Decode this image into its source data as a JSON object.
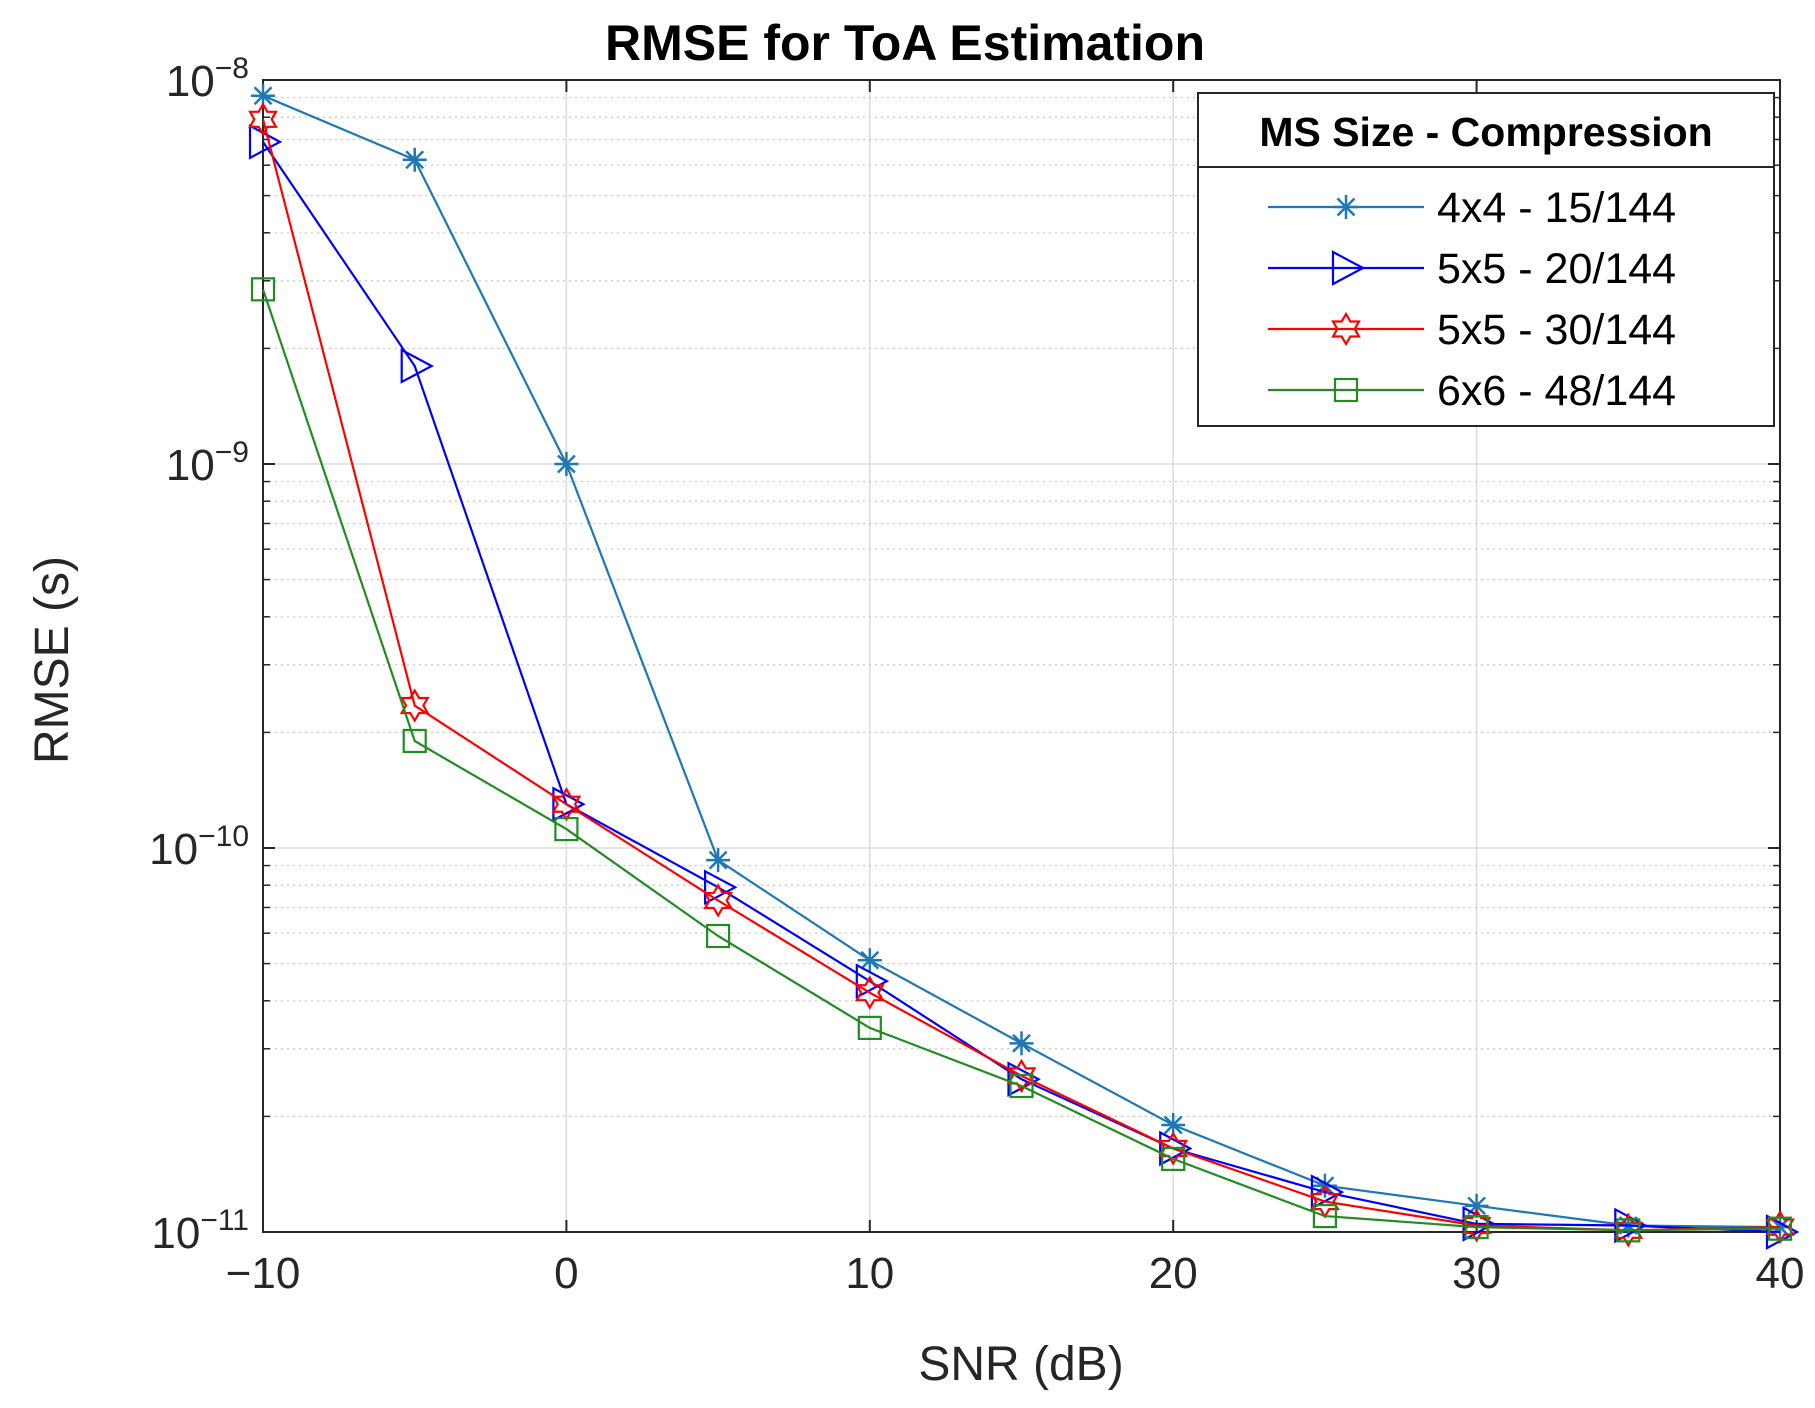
{
  "chart_data": {
    "type": "line",
    "title": "RMSE for ToA Estimation",
    "xlabel": "SNR (dB)",
    "ylabel": "RMSE (s)",
    "x_scale": "linear",
    "y_scale": "log",
    "xlim": [
      -10,
      40
    ],
    "ylim": [
      1e-11,
      1e-08
    ],
    "x": [
      -10,
      -5,
      0,
      5,
      10,
      15,
      20,
      25,
      30,
      35,
      40
    ],
    "x_ticks": [
      -10,
      0,
      10,
      20,
      30,
      40
    ],
    "x_tick_labels": [
      "−10",
      "0",
      "10",
      "20",
      "30",
      "40"
    ],
    "y_ticks": [
      {
        "value": 1e-08,
        "base": "10",
        "exp": "−8"
      },
      {
        "value": 1e-09,
        "base": "10",
        "exp": "−9"
      },
      {
        "value": 1e-10,
        "base": "10",
        "exp": "−10"
      },
      {
        "value": 1e-11,
        "base": "10",
        "exp": "−11"
      }
    ],
    "grid": true,
    "minor_grid": true,
    "legend_title": "MS Size - Compression",
    "legend_position": "top-right",
    "series": [
      {
        "name": "4x4 - 15/144",
        "color": "#1f77b4",
        "marker": "asterisk",
        "values": [
          9.1e-09,
          6.2e-09,
          1e-09,
          9.3e-11,
          5.1e-11,
          3.1e-11,
          1.9e-11,
          1.32e-11,
          1.17e-11,
          1.04e-11,
          1.03e-11
        ]
      },
      {
        "name": "5x5 - 20/144",
        "color": "#0000ff",
        "marker": "triangle-right",
        "values": [
          6.9e-09,
          1.8e-09,
          1.3e-10,
          7.9e-11,
          4.5e-11,
          2.5e-11,
          1.65e-11,
          1.27e-11,
          1.05e-11,
          1.04e-11,
          1e-11
        ]
      },
      {
        "name": "5x5 - 30/144",
        "color": "#ff0000",
        "marker": "hexagram",
        "values": [
          7.9e-09,
          2.35e-10,
          1.3e-10,
          7.3e-11,
          4.2e-11,
          2.55e-11,
          1.65e-11,
          1.2e-11,
          1.04e-11,
          1.01e-11,
          1.03e-11
        ]
      },
      {
        "name": "6x6 - 48/144",
        "color": "#228b22",
        "marker": "square",
        "values": [
          2.85e-09,
          1.9e-10,
          1.12e-10,
          5.9e-11,
          3.4e-11,
          2.4e-11,
          1.55e-11,
          1.1e-11,
          1.03e-11,
          1.01e-11,
          1.02e-11
        ]
      }
    ]
  }
}
